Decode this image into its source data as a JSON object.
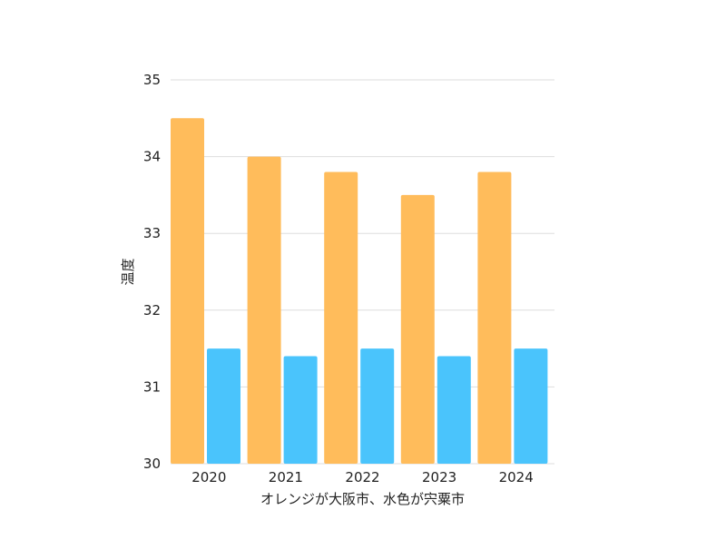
{
  "chart_data": {
    "type": "bar",
    "categories": [
      "2020",
      "2021",
      "2022",
      "2023",
      "2024"
    ],
    "series": [
      {
        "values": [
          34.5,
          34.0,
          33.8,
          33.5,
          33.8
        ]
      },
      {
        "values": [
          31.5,
          31.4,
          31.5,
          31.4,
          31.5
        ]
      }
    ],
    "xlabel": "オレンジが大阪市、水色が宍粟市",
    "ylabel": "温度",
    "ylim": [
      30,
      35
    ],
    "yticks": [
      30,
      31,
      32,
      33,
      34,
      35
    ],
    "grid": true,
    "colors": [
      "#ffbc5b",
      "#4ac4fc"
    ]
  }
}
